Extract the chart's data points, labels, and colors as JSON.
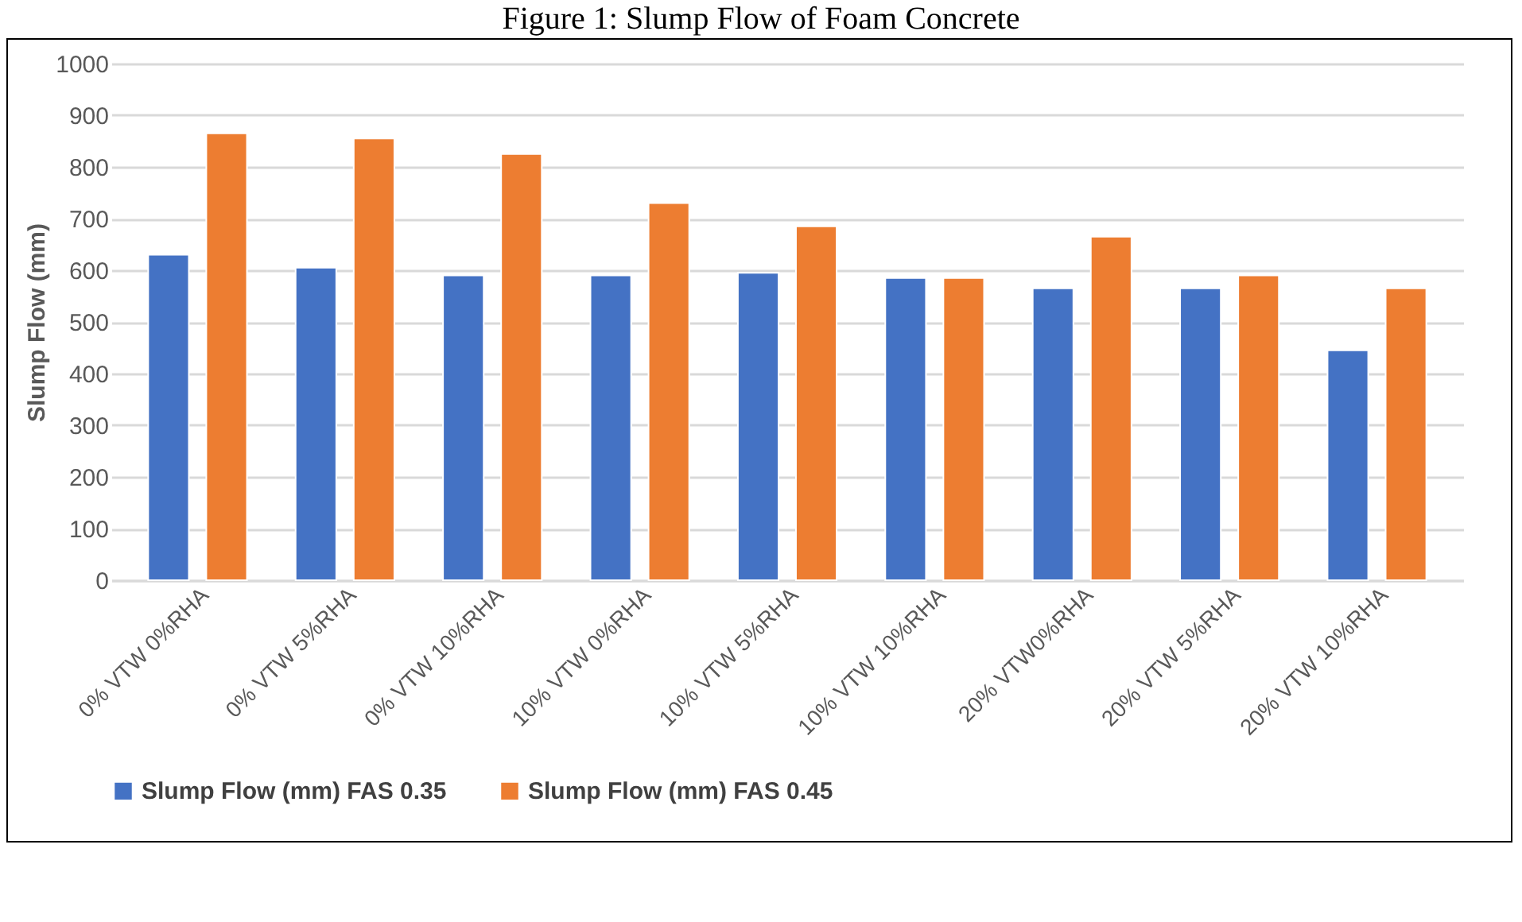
{
  "chart_data": {
    "type": "bar",
    "title": "Figure 1: Slump Flow of Foam Concrete",
    "ylabel": "Slump Flow (mm)",
    "categories": [
      "0% VTW 0%RHA",
      "0% VTW 5%RHA",
      "0% VTW 10%RHA",
      "10% VTW 0%RHA",
      "10% VTW 5%RHA",
      "10% VTW 10%RHA",
      "20% VTW0%RHA",
      "20% VTW 5%RHA",
      "20% VTW 10%RHA"
    ],
    "series": [
      {
        "name": "Slump Flow (mm) FAS 0.35",
        "color": "#4472c4",
        "values": [
          630,
          605,
          590,
          590,
          595,
          585,
          565,
          565,
          445
        ]
      },
      {
        "name": "Slump Flow (mm) FAS 0.45",
        "color": "#ed7d31",
        "values": [
          865,
          855,
          825,
          730,
          685,
          585,
          665,
          590,
          565
        ]
      }
    ],
    "ylim": [
      0,
      1000
    ],
    "yticks": [
      0,
      100,
      200,
      300,
      400,
      500,
      600,
      700,
      800,
      900,
      1000
    ],
    "grid": "y",
    "legend": "bottom"
  }
}
